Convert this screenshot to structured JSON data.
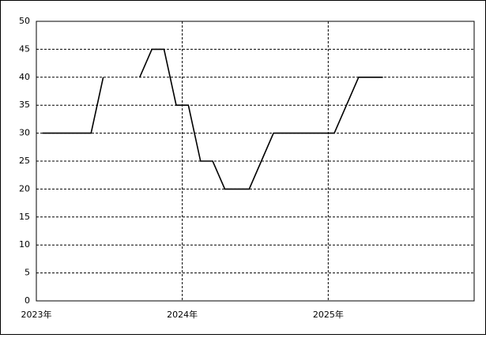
{
  "chart_data": {
    "type": "line",
    "x": [
      0.5,
      1.5,
      2.5,
      3.5,
      4.5,
      5.5,
      6.5,
      7.5,
      8.5,
      9.5,
      10.5,
      11.5,
      12.5,
      13.5,
      14.5,
      15.5,
      16.5,
      17.5,
      18.5,
      19.5,
      20.5,
      21.5,
      22.5,
      23.5,
      24.5,
      25.5,
      26.5,
      27.5,
      28.5
    ],
    "series": [
      {
        "color": "#000000",
        "values": [
          30,
          30,
          30,
          30,
          30,
          40,
          null,
          null,
          40,
          45,
          45,
          35,
          35,
          25,
          25,
          20,
          20,
          20,
          25,
          30,
          30,
          30,
          30,
          30,
          30,
          35,
          40,
          40,
          40
        ]
      }
    ],
    "xlim": [
      0,
      36
    ],
    "xticks": [
      {
        "value": 0,
        "label": "2023年"
      },
      {
        "value": 12,
        "label": "2024年"
      },
      {
        "value": 24,
        "label": "2025年"
      }
    ],
    "ylim": [
      0,
      50
    ],
    "yticks": [
      0,
      5,
      10,
      15,
      20,
      25,
      30,
      35,
      40,
      45,
      50
    ],
    "grid": true
  }
}
